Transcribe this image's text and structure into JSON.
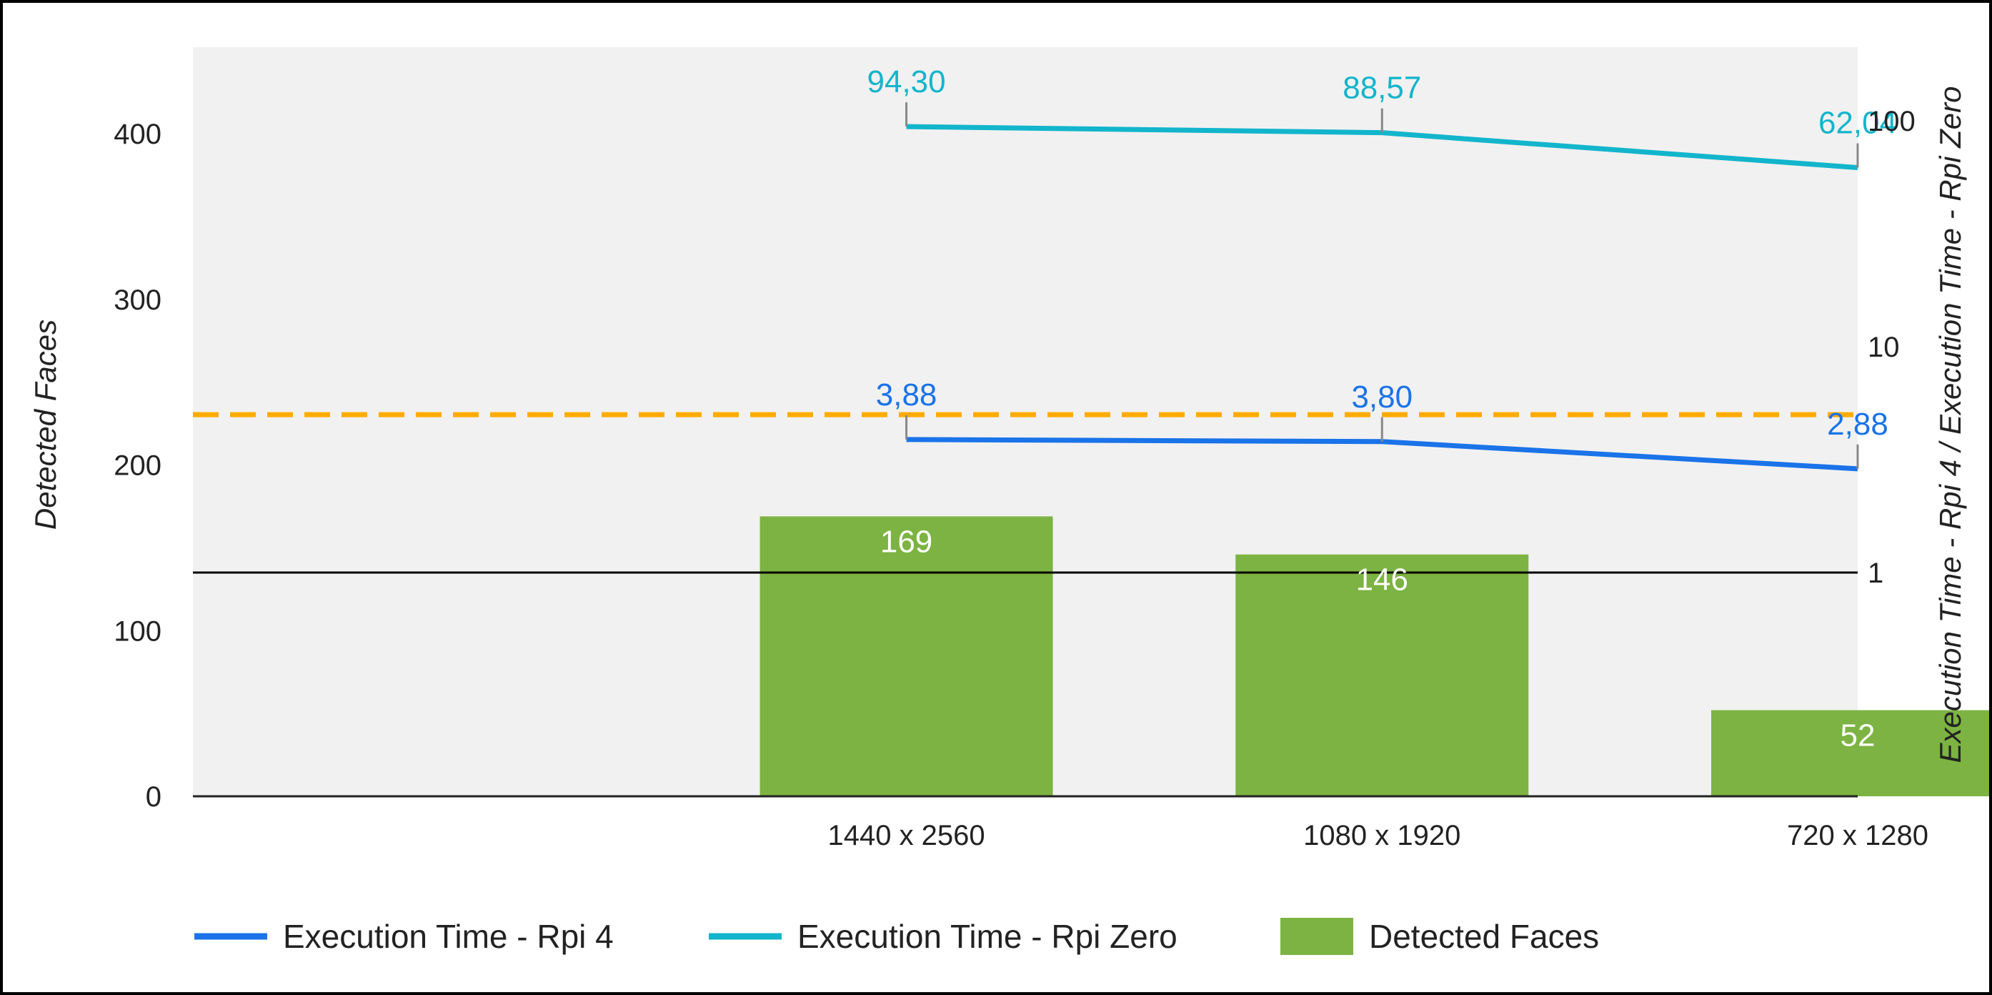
{
  "chart_data": {
    "type": "bar",
    "categories": [
      "1440 x 2560",
      "1080 x 1920",
      "720 x 1280"
    ],
    "ylabel_left": "Detected Faces",
    "ylabel_right": "Execution Time - Rpi 4 / Execution Time - Rpi Zero",
    "y_left_range": [
      0,
      450
    ],
    "y_left_ticks": [
      "0",
      "100",
      "200",
      "300",
      "400"
    ],
    "y_right_scale": "log",
    "y_right_range": [
      0.1,
      200
    ],
    "y_right_ticks": [
      "1",
      "10",
      "100"
    ],
    "series": [
      {
        "name": "Detected Faces",
        "type": "bar",
        "axis": "left",
        "color": "#7cb342",
        "values": [
          169,
          146,
          52
        ],
        "labels": [
          "169",
          "146",
          "52"
        ]
      },
      {
        "name": "Execution Time - Rpi 4",
        "type": "line",
        "axis": "right",
        "color": "#1a73e8",
        "values": [
          3.88,
          3.8,
          2.88
        ],
        "labels": [
          "3,88",
          "3,80",
          "2,88"
        ]
      },
      {
        "name": "Execution Time - Rpi Zero",
        "type": "line",
        "axis": "right",
        "color": "#12b5cb",
        "values": [
          94.3,
          88.57,
          62.04
        ],
        "labels": [
          "94,30",
          "88,57",
          "62,04"
        ]
      }
    ],
    "reference_lines": [
      {
        "axis": "right",
        "value": 5,
        "style": "dashed",
        "color": "#ffab00"
      },
      {
        "axis": "right",
        "value": 1,
        "style": "solid",
        "color": "#000000"
      }
    ],
    "plot_background": "#f1f1f1",
    "grid": false,
    "legend_position": "bottom"
  },
  "legend": [
    {
      "label": "Execution Time - Rpi 4",
      "color": "#1a73e8",
      "shape": "line"
    },
    {
      "label": "Execution Time - Rpi Zero",
      "color": "#12b5cb",
      "shape": "line"
    },
    {
      "label": "Detected Faces",
      "color": "#7cb342",
      "shape": "box"
    }
  ]
}
